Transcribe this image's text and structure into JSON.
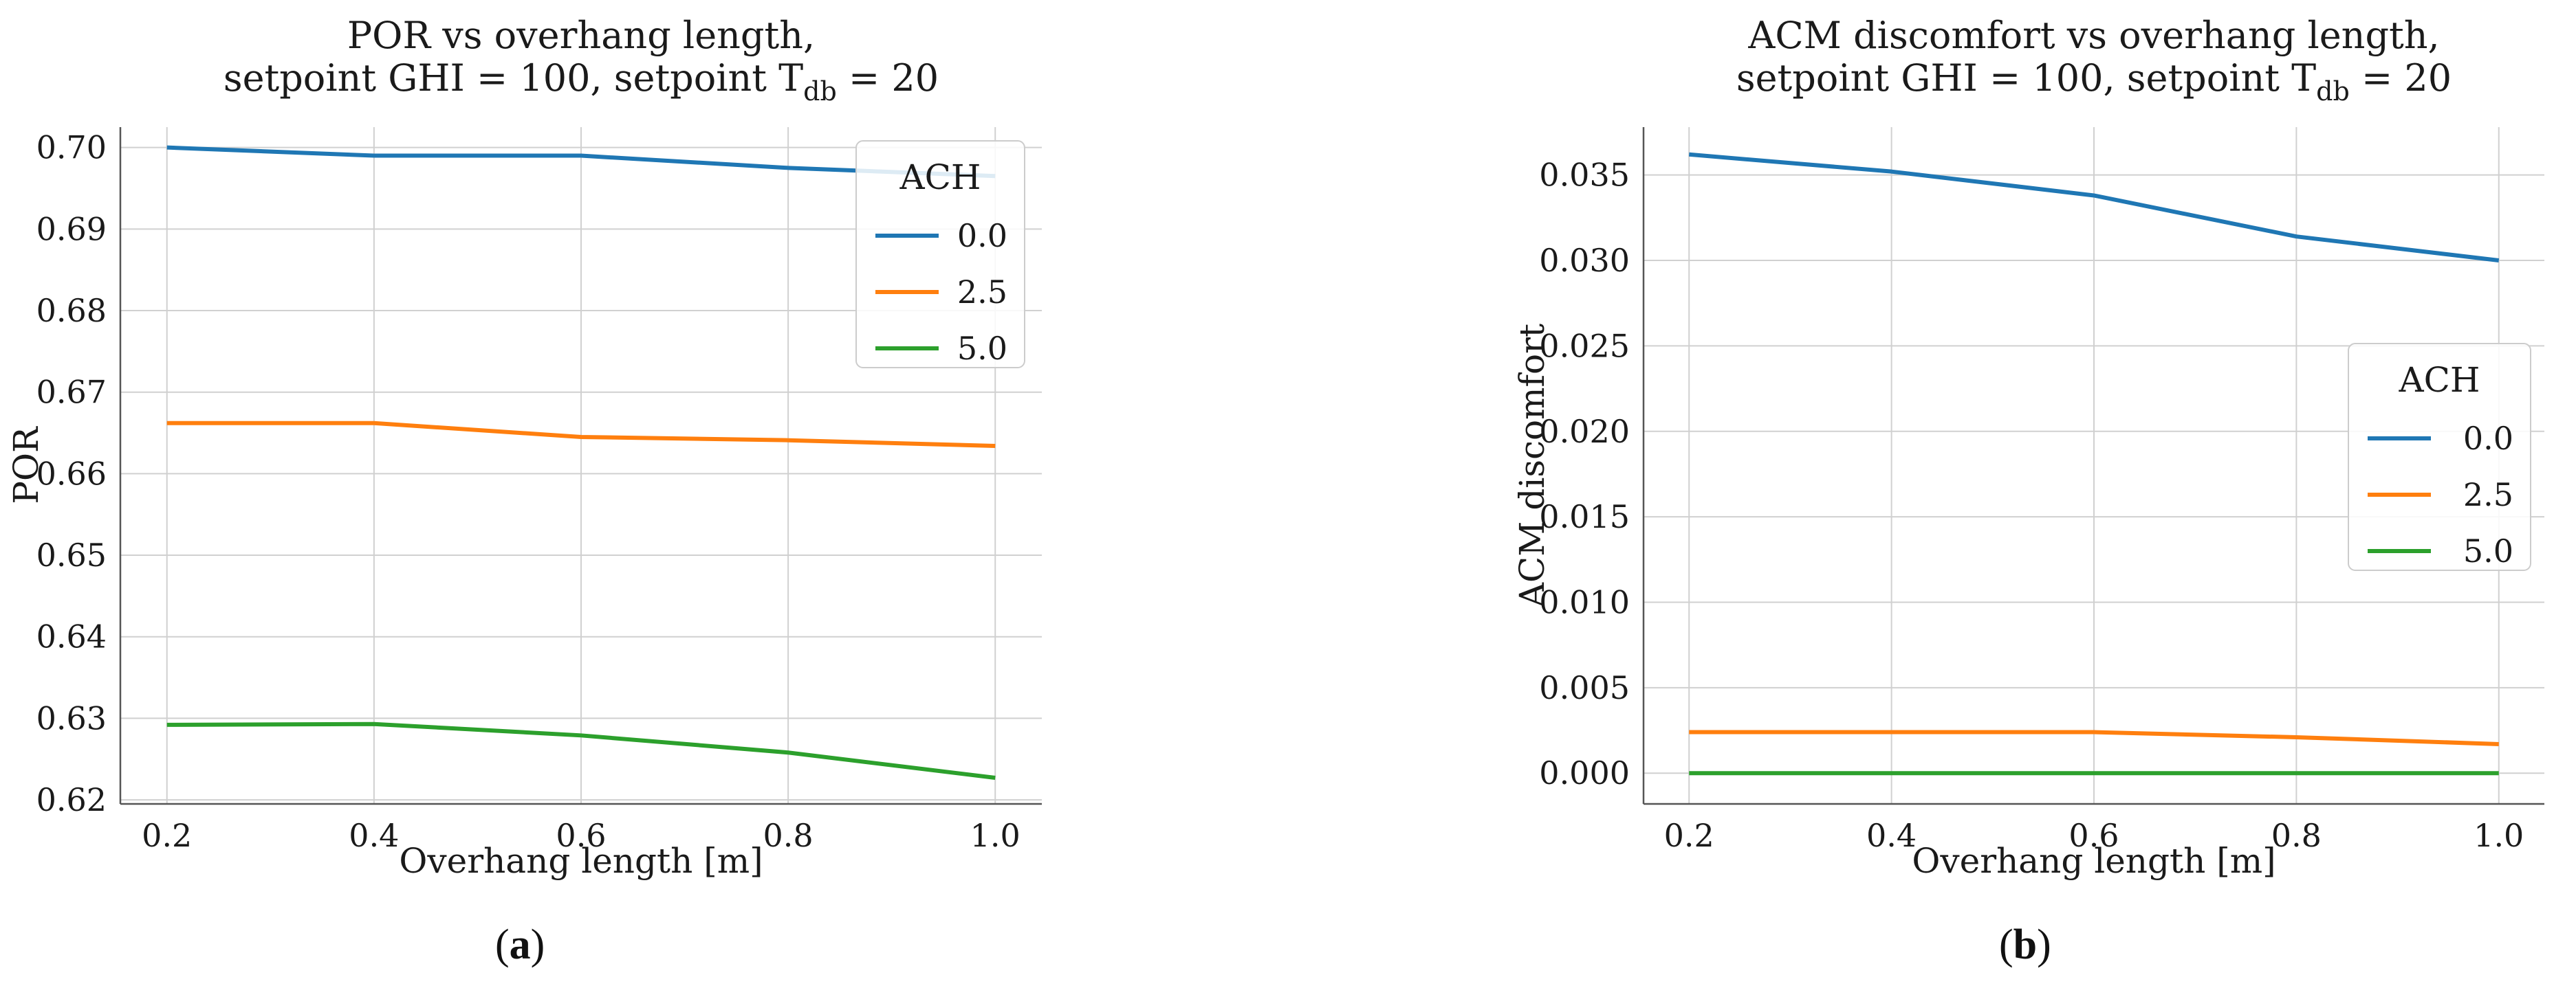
{
  "chart_data": [
    {
      "type": "line",
      "title_line1": "POR vs overhang length,",
      "title_line2_pre": "setpoint GHI = 100, setpoint T",
      "title_line2_sub": "db",
      "title_line2_post": " = 20",
      "xlabel": "Overhang length [m]",
      "ylabel": "POR",
      "x": [
        0.2,
        0.4,
        0.6,
        0.8,
        1.0
      ],
      "xlim": [
        0.155,
        1.045
      ],
      "ylim": [
        0.6195,
        0.7025
      ],
      "xticks": [
        0.2,
        0.4,
        0.6,
        0.8,
        1.0
      ],
      "xtick_labels": [
        "0.2",
        "0.4",
        "0.6",
        "0.8",
        "1.0"
      ],
      "yticks": [
        0.62,
        0.63,
        0.64,
        0.65,
        0.66,
        0.67,
        0.68,
        0.69,
        0.7
      ],
      "ytick_labels": [
        "0.62",
        "0.63",
        "0.64",
        "0.65",
        "0.66",
        "0.67",
        "0.68",
        "0.69",
        "0.70"
      ],
      "grid": true,
      "legend_title": "ACH",
      "legend_position": "top-right",
      "series": [
        {
          "name": "0.0",
          "color": "#1f77b4",
          "values": [
            0.7,
            0.699,
            0.699,
            0.6975,
            0.6965
          ]
        },
        {
          "name": "2.5",
          "color": "#ff7f0e",
          "values": [
            0.6662,
            0.6662,
            0.6645,
            0.6641,
            0.6634
          ]
        },
        {
          "name": "5.0",
          "color": "#2ca02c",
          "values": [
            0.6292,
            0.6293,
            0.6279,
            0.6258,
            0.6227
          ]
        }
      ]
    },
    {
      "type": "line",
      "title_line1": "ACM discomfort vs overhang length,",
      "title_line2_pre": "setpoint GHI = 100, setpoint T",
      "title_line2_sub": "db",
      "title_line2_post": " = 20",
      "xlabel": "Overhang length [m]",
      "ylabel": "ACM discomfort",
      "x": [
        0.2,
        0.4,
        0.6,
        0.8,
        1.0
      ],
      "xlim": [
        0.155,
        1.045
      ],
      "ylim": [
        -0.0018,
        0.0378
      ],
      "xticks": [
        0.2,
        0.4,
        0.6,
        0.8,
        1.0
      ],
      "xtick_labels": [
        "0.2",
        "0.4",
        "0.6",
        "0.8",
        "1.0"
      ],
      "yticks": [
        0.0,
        0.005,
        0.01,
        0.015,
        0.02,
        0.025,
        0.03,
        0.035
      ],
      "ytick_labels": [
        "0.000",
        "0.005",
        "0.010",
        "0.015",
        "0.020",
        "0.025",
        "0.030",
        "0.035"
      ],
      "grid": true,
      "legend_title": "ACH",
      "legend_position": "center-right",
      "series": [
        {
          "name": "0.0",
          "color": "#1f77b4",
          "values": [
            0.0362,
            0.0352,
            0.0338,
            0.0314,
            0.03
          ]
        },
        {
          "name": "2.5",
          "color": "#ff7f0e",
          "values": [
            0.0024,
            0.0024,
            0.0024,
            0.0021,
            0.0017
          ]
        },
        {
          "name": "5.0",
          "color": "#2ca02c",
          "values": [
            0.0,
            0.0,
            0.0,
            0.0,
            0.0
          ]
        }
      ]
    }
  ],
  "captions": [
    "(a)",
    "(b)"
  ],
  "caption_letters": [
    "a",
    "b"
  ]
}
